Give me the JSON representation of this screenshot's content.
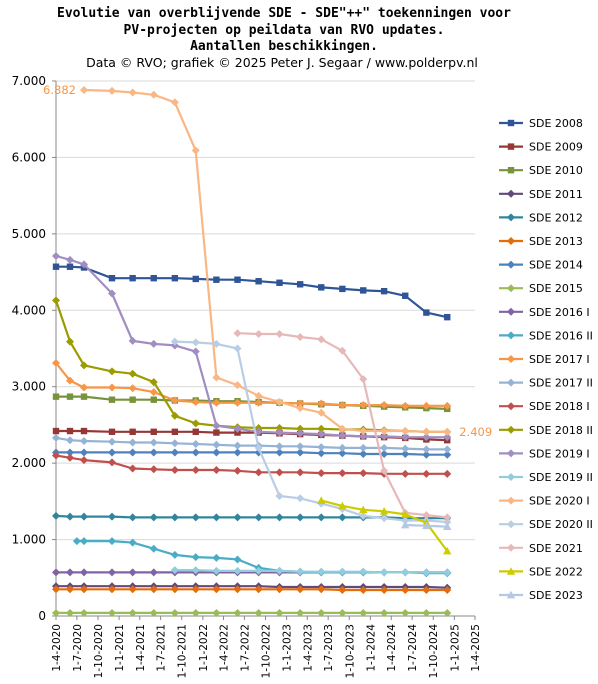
{
  "chart_data": {
    "type": "line",
    "title_lines": [
      "Evolutie van overblijvende SDE - SDE\"++\" toekenningen voor",
      "PV-projecten op peildata van RVO updates.",
      "Aantallen beschikkingen."
    ],
    "subtitle": "Data © RVO; grafiek © 2025 Peter J. Segaar / www.polderpv.nl",
    "ylim": [
      0,
      7000
    ],
    "yticks": [
      "0",
      "1.000",
      "2.000",
      "3.000",
      "4.000",
      "5.000",
      "6.000",
      "7.000"
    ],
    "x_categories": [
      "1-4-2020",
      "1-7-2020",
      "1-10-2020",
      "1-1-2021",
      "1-4-2021",
      "1-7-2021",
      "1-10-2021",
      "1-1-2022",
      "1-4-2022",
      "1-7-2022",
      "1-10-2022",
      "1-1-2023",
      "1-4-2023",
      "1-7-2023",
      "1-10-2023",
      "1-1-2024",
      "1-4-2024",
      "1-7-2024",
      "1-10-2024",
      "1-1-2025",
      "1-4-2025"
    ],
    "x_dates": [
      "2020-04-01",
      "2020-07-01",
      "2020-10-01",
      "2021-01-01",
      "2021-04-01",
      "2021-07-01",
      "2021-10-01",
      "2022-01-01",
      "2022-04-01",
      "2022-07-01",
      "2022-10-01",
      "2023-01-01",
      "2023-04-01",
      "2023-07-01",
      "2023-10-01",
      "2024-01-01",
      "2024-04-01",
      "2024-07-01",
      "2024-10-01",
      "2025-01-01",
      "2025-04-01"
    ],
    "legend_position": "right",
    "grid": "horizontal",
    "annotations": [
      {
        "text": "6.882",
        "series": "SDE 2020 I",
        "color": "#f79646"
      },
      {
        "text": "2.409",
        "series": "SDE 2018 II",
        "color": "#f79646"
      }
    ],
    "series": [
      {
        "name": "SDE 2008",
        "color": "#2f5597",
        "marker": "square",
        "x": [
          "2020-04-01",
          "2020-06-01",
          "2020-08-01",
          "2020-12-01",
          "2021-03-01",
          "2021-06-01",
          "2021-09-01",
          "2021-12-01",
          "2022-03-01",
          "2022-06-01",
          "2022-09-01",
          "2022-12-01",
          "2023-03-01",
          "2023-06-01",
          "2023-09-01",
          "2023-12-01",
          "2024-03-01",
          "2024-06-01",
          "2024-09-01",
          "2024-12-01"
        ],
        "y": [
          4570,
          4570,
          4560,
          4420,
          4420,
          4420,
          4420,
          4410,
          4400,
          4400,
          4380,
          4360,
          4340,
          4300,
          4280,
          4260,
          4250,
          4190,
          3970,
          3910
        ]
      },
      {
        "name": "SDE 2009",
        "color": "#953735",
        "marker": "square",
        "x": [
          "2020-04-01",
          "2020-06-01",
          "2020-08-01",
          "2020-12-01",
          "2021-03-01",
          "2021-06-01",
          "2021-09-01",
          "2021-12-01",
          "2022-03-01",
          "2022-06-01",
          "2022-09-01",
          "2022-12-01",
          "2023-03-01",
          "2023-06-01",
          "2023-09-01",
          "2023-12-01",
          "2024-03-01",
          "2024-06-01",
          "2024-09-01",
          "2024-12-01"
        ],
        "y": [
          2420,
          2420,
          2420,
          2410,
          2410,
          2410,
          2410,
          2410,
          2400,
          2400,
          2400,
          2390,
          2380,
          2370,
          2360,
          2350,
          2340,
          2330,
          2310,
          2300
        ]
      },
      {
        "name": "SDE 2010",
        "color": "#77933c",
        "marker": "square",
        "x": [
          "2020-04-01",
          "2020-06-01",
          "2020-08-01",
          "2020-12-01",
          "2021-03-01",
          "2021-06-01",
          "2021-09-01",
          "2021-12-01",
          "2022-03-01",
          "2022-06-01",
          "2022-09-01",
          "2022-12-01",
          "2023-03-01",
          "2023-06-01",
          "2023-09-01",
          "2023-12-01",
          "2024-03-01",
          "2024-06-01",
          "2024-09-01",
          "2024-12-01"
        ],
        "y": [
          2870,
          2870,
          2870,
          2830,
          2830,
          2830,
          2820,
          2820,
          2810,
          2810,
          2800,
          2790,
          2780,
          2770,
          2760,
          2750,
          2740,
          2730,
          2720,
          2710
        ]
      },
      {
        "name": "SDE 2011",
        "color": "#604a7b",
        "marker": "diamond",
        "x": [
          "2020-04-01",
          "2020-06-01",
          "2020-08-01",
          "2020-12-01",
          "2021-03-01",
          "2021-06-01",
          "2021-09-01",
          "2021-12-01",
          "2022-03-01",
          "2022-06-01",
          "2022-09-01",
          "2022-12-01",
          "2023-03-01",
          "2023-06-01",
          "2023-09-01",
          "2023-12-01",
          "2024-03-01",
          "2024-06-01",
          "2024-09-01",
          "2024-12-01"
        ],
        "y": [
          390,
          390,
          390,
          390,
          390,
          390,
          390,
          390,
          390,
          390,
          390,
          380,
          380,
          380,
          380,
          380,
          380,
          380,
          380,
          370
        ]
      },
      {
        "name": "SDE 2012",
        "color": "#31859c",
        "marker": "diamond",
        "x": [
          "2020-04-01",
          "2020-06-01",
          "2020-08-01",
          "2020-12-01",
          "2021-03-01",
          "2021-06-01",
          "2021-09-01",
          "2021-12-01",
          "2022-03-01",
          "2022-06-01",
          "2022-09-01",
          "2022-12-01",
          "2023-03-01",
          "2023-06-01",
          "2023-09-01",
          "2023-12-01",
          "2024-03-01",
          "2024-06-01",
          "2024-09-01",
          "2024-12-01"
        ],
        "y": [
          1310,
          1300,
          1300,
          1300,
          1290,
          1290,
          1290,
          1290,
          1290,
          1290,
          1290,
          1290,
          1290,
          1290,
          1290,
          1290,
          1290,
          1280,
          1280,
          1280
        ]
      },
      {
        "name": "SDE 2013",
        "color": "#e46c0a",
        "marker": "diamond",
        "x": [
          "2020-04-01",
          "2020-06-01",
          "2020-08-01",
          "2020-12-01",
          "2021-03-01",
          "2021-06-01",
          "2021-09-01",
          "2021-12-01",
          "2022-03-01",
          "2022-06-01",
          "2022-09-01",
          "2022-12-01",
          "2023-03-01",
          "2023-06-01",
          "2023-09-01",
          "2023-12-01",
          "2024-03-01",
          "2024-06-01",
          "2024-09-01",
          "2024-12-01"
        ],
        "y": [
          350,
          350,
          350,
          350,
          350,
          350,
          350,
          350,
          350,
          350,
          350,
          350,
          350,
          350,
          340,
          340,
          340,
          340,
          340,
          340
        ]
      },
      {
        "name": "SDE 2014",
        "color": "#4f81bd",
        "marker": "diamond",
        "x": [
          "2020-04-01",
          "2020-06-01",
          "2020-08-01",
          "2020-12-01",
          "2021-03-01",
          "2021-06-01",
          "2021-09-01",
          "2021-12-01",
          "2022-03-01",
          "2022-06-01",
          "2022-09-01",
          "2022-12-01",
          "2023-03-01",
          "2023-06-01",
          "2023-09-01",
          "2023-12-01",
          "2024-03-01",
          "2024-06-01",
          "2024-09-01",
          "2024-12-01"
        ],
        "y": [
          2140,
          2140,
          2140,
          2140,
          2140,
          2140,
          2140,
          2140,
          2140,
          2140,
          2140,
          2140,
          2140,
          2130,
          2130,
          2120,
          2120,
          2120,
          2110,
          2110
        ]
      },
      {
        "name": "SDE 2015",
        "color": "#9bbb59",
        "marker": "diamond",
        "x": [
          "2020-04-01",
          "2020-06-01",
          "2020-08-01",
          "2020-12-01",
          "2021-03-01",
          "2021-06-01",
          "2021-09-01",
          "2021-12-01",
          "2022-03-01",
          "2022-06-01",
          "2022-09-01",
          "2022-12-01",
          "2023-03-01",
          "2023-06-01",
          "2023-09-01",
          "2023-12-01",
          "2024-03-01",
          "2024-06-01",
          "2024-09-01",
          "2024-12-01"
        ],
        "y": [
          40,
          40,
          40,
          40,
          40,
          40,
          40,
          40,
          40,
          40,
          40,
          40,
          40,
          40,
          40,
          40,
          40,
          40,
          40,
          40
        ]
      },
      {
        "name": "SDE 2016 I",
        "color": "#8064a2",
        "marker": "diamond",
        "x": [
          "2020-04-01",
          "2020-06-01",
          "2020-08-01",
          "2020-12-01",
          "2021-03-01",
          "2021-06-01",
          "2021-09-01",
          "2021-12-01",
          "2022-03-01",
          "2022-06-01",
          "2022-09-01",
          "2022-12-01",
          "2023-03-01",
          "2023-06-01",
          "2023-09-01",
          "2023-12-01",
          "2024-03-01",
          "2024-06-01",
          "2024-09-01",
          "2024-12-01"
        ],
        "y": [
          570,
          570,
          570,
          570,
          570,
          570,
          570,
          570,
          570,
          570,
          570,
          570,
          570,
          570,
          570,
          570,
          570,
          570,
          570,
          570
        ]
      },
      {
        "name": "SDE 2016 II",
        "color": "#4bacc6",
        "marker": "diamond",
        "x": [
          "2020-07-01",
          "2020-08-01",
          "2020-12-01",
          "2021-03-01",
          "2021-06-01",
          "2021-09-01",
          "2021-12-01",
          "2022-03-01",
          "2022-06-01",
          "2022-09-01",
          "2022-12-01",
          "2023-03-01",
          "2023-06-01",
          "2023-09-01",
          "2023-12-01",
          "2024-03-01",
          "2024-06-01",
          "2024-09-01",
          "2024-12-01"
        ],
        "y": [
          980,
          980,
          980,
          960,
          880,
          800,
          770,
          760,
          740,
          630,
          590,
          580,
          570,
          570,
          570,
          570,
          570,
          560,
          560
        ]
      },
      {
        "name": "SDE 2017 I",
        "color": "#f79646",
        "marker": "diamond",
        "x": [
          "2020-04-01",
          "2020-06-01",
          "2020-08-01",
          "2020-12-01",
          "2021-03-01",
          "2021-06-01",
          "2021-09-01",
          "2021-12-01",
          "2022-03-01",
          "2022-06-01",
          "2022-09-01",
          "2022-12-01",
          "2023-03-01",
          "2023-06-01",
          "2023-09-01",
          "2023-12-01",
          "2024-03-01",
          "2024-06-01",
          "2024-09-01",
          "2024-12-01"
        ],
        "y": [
          3310,
          3080,
          2990,
          2990,
          2980,
          2930,
          2820,
          2800,
          2790,
          2790,
          2790,
          2790,
          2780,
          2780,
          2760,
          2760,
          2760,
          2750,
          2750,
          2750
        ]
      },
      {
        "name": "SDE 2017 II",
        "color": "#95b3d7",
        "marker": "diamond",
        "x": [
          "2020-04-01",
          "2020-06-01",
          "2020-08-01",
          "2020-12-01",
          "2021-03-01",
          "2021-06-01",
          "2021-09-01",
          "2021-12-01",
          "2022-03-01",
          "2022-06-01",
          "2022-09-01",
          "2022-12-01",
          "2023-03-01",
          "2023-06-01",
          "2023-09-01",
          "2023-12-01",
          "2024-03-01",
          "2024-06-01",
          "2024-09-01",
          "2024-12-01"
        ],
        "y": [
          2330,
          2300,
          2290,
          2280,
          2270,
          2270,
          2260,
          2250,
          2240,
          2230,
          2230,
          2220,
          2220,
          2210,
          2200,
          2200,
          2200,
          2190,
          2180,
          2180
        ]
      },
      {
        "name": "SDE 2018 I",
        "color": "#c0504d",
        "marker": "diamond",
        "x": [
          "2020-04-01",
          "2020-06-01",
          "2020-08-01",
          "2020-12-01",
          "2021-03-01",
          "2021-06-01",
          "2021-09-01",
          "2021-12-01",
          "2022-03-01",
          "2022-06-01",
          "2022-09-01",
          "2022-12-01",
          "2023-03-01",
          "2023-06-01",
          "2023-09-01",
          "2023-12-01",
          "2024-03-01",
          "2024-06-01",
          "2024-09-01",
          "2024-12-01"
        ],
        "y": [
          2100,
          2070,
          2040,
          2010,
          1930,
          1920,
          1910,
          1910,
          1910,
          1900,
          1880,
          1880,
          1880,
          1870,
          1870,
          1870,
          1860,
          1860,
          1860,
          1860
        ]
      },
      {
        "name": "SDE 2018 II",
        "color": "#9c9b00",
        "marker": "diamond",
        "x": [
          "2020-04-01",
          "2020-06-01",
          "2020-08-01",
          "2020-12-01",
          "2021-03-01",
          "2021-06-01",
          "2021-09-01",
          "2021-12-01",
          "2022-03-01",
          "2022-06-01",
          "2022-09-01",
          "2022-12-01",
          "2023-03-01",
          "2023-06-01",
          "2023-09-01",
          "2023-12-01",
          "2024-03-01",
          "2024-06-01",
          "2024-09-01",
          "2024-12-01"
        ],
        "y": [
          4130,
          3590,
          3280,
          3200,
          3170,
          3060,
          2620,
          2520,
          2490,
          2470,
          2460,
          2460,
          2450,
          2450,
          2440,
          2440,
          2430,
          2420,
          2410,
          2409
        ]
      },
      {
        "name": "SDE 2019 I",
        "color": "#a08ec2",
        "marker": "diamond",
        "x": [
          "2020-04-01",
          "2020-06-01",
          "2020-08-01",
          "2020-12-01",
          "2021-03-01",
          "2021-06-01",
          "2021-09-01",
          "2021-12-01",
          "2022-03-01",
          "2022-06-01",
          "2022-09-01",
          "2022-12-01",
          "2023-03-01",
          "2023-06-01",
          "2023-09-01",
          "2023-12-01",
          "2024-03-01",
          "2024-06-01",
          "2024-09-01",
          "2024-12-01"
        ],
        "y": [
          4710,
          4660,
          4600,
          4220,
          3600,
          3560,
          3540,
          3460,
          2490,
          2450,
          2410,
          2400,
          2390,
          2380,
          2360,
          2350,
          2350,
          2340,
          2340,
          2340
        ]
      },
      {
        "name": "SDE 2019 II",
        "color": "#93cddd",
        "marker": "diamond",
        "x": [
          "2021-09-01",
          "2021-12-01",
          "2022-03-01",
          "2022-06-01",
          "2022-09-01",
          "2022-12-01",
          "2023-03-01",
          "2023-06-01",
          "2023-09-01",
          "2023-12-01",
          "2024-03-01",
          "2024-06-01",
          "2024-09-01",
          "2024-12-01"
        ],
        "y": [
          600,
          600,
          590,
          590,
          590,
          590,
          580,
          580,
          580,
          580,
          570,
          570,
          570,
          570
        ]
      },
      {
        "name": "SDE 2020 I",
        "color": "#fab683",
        "marker": "diamond",
        "x": [
          "2020-08-01",
          "2020-12-01",
          "2021-03-01",
          "2021-06-01",
          "2021-09-01",
          "2021-12-01",
          "2022-03-01",
          "2022-06-01",
          "2022-09-01",
          "2022-12-01",
          "2023-03-01",
          "2023-06-01",
          "2023-09-01",
          "2023-12-01",
          "2024-03-01",
          "2024-06-01",
          "2024-09-01",
          "2024-12-01"
        ],
        "y": [
          6882,
          6870,
          6850,
          6820,
          6720,
          6090,
          3120,
          3020,
          2880,
          2800,
          2720,
          2660,
          2450,
          2420,
          2420,
          2420,
          2410,
          2409
        ]
      },
      {
        "name": "SDE 2020 II",
        "color": "#b9cde5",
        "marker": "diamond",
        "x": [
          "2021-09-01",
          "2021-12-01",
          "2022-03-01",
          "2022-06-01",
          "2022-09-01",
          "2022-12-01",
          "2023-03-01",
          "2023-06-01",
          "2023-09-01",
          "2023-12-01",
          "2024-03-01",
          "2024-06-01",
          "2024-09-01",
          "2024-12-01"
        ],
        "y": [
          3590,
          3580,
          3560,
          3500,
          2200,
          1570,
          1540,
          1470,
          1400,
          1310,
          1280,
          1250,
          1250,
          1230
        ]
      },
      {
        "name": "SDE 2021",
        "color": "#e6b9b8",
        "marker": "diamond",
        "x": [
          "2022-06-01",
          "2022-09-01",
          "2022-12-01",
          "2023-03-01",
          "2023-06-01",
          "2023-09-01",
          "2023-12-01",
          "2024-03-01",
          "2024-06-01",
          "2024-09-01",
          "2024-12-01"
        ],
        "y": [
          3700,
          3690,
          3690,
          3650,
          3620,
          3470,
          3100,
          1900,
          1350,
          1320,
          1290
        ]
      },
      {
        "name": "SDE 2022",
        "color": "#cccc00",
        "marker": "triangle",
        "x": [
          "2023-06-01",
          "2023-09-01",
          "2023-12-01",
          "2024-03-01",
          "2024-06-01",
          "2024-09-01",
          "2024-12-01"
        ],
        "y": [
          1510,
          1440,
          1390,
          1370,
          1330,
          1220,
          850
        ]
      },
      {
        "name": "SDE 2023",
        "color": "#b4c7e7",
        "marker": "triangle",
        "x": [
          "2024-06-01",
          "2024-09-01",
          "2024-12-01"
        ],
        "y": [
          1190,
          1180,
          1170
        ]
      }
    ]
  }
}
